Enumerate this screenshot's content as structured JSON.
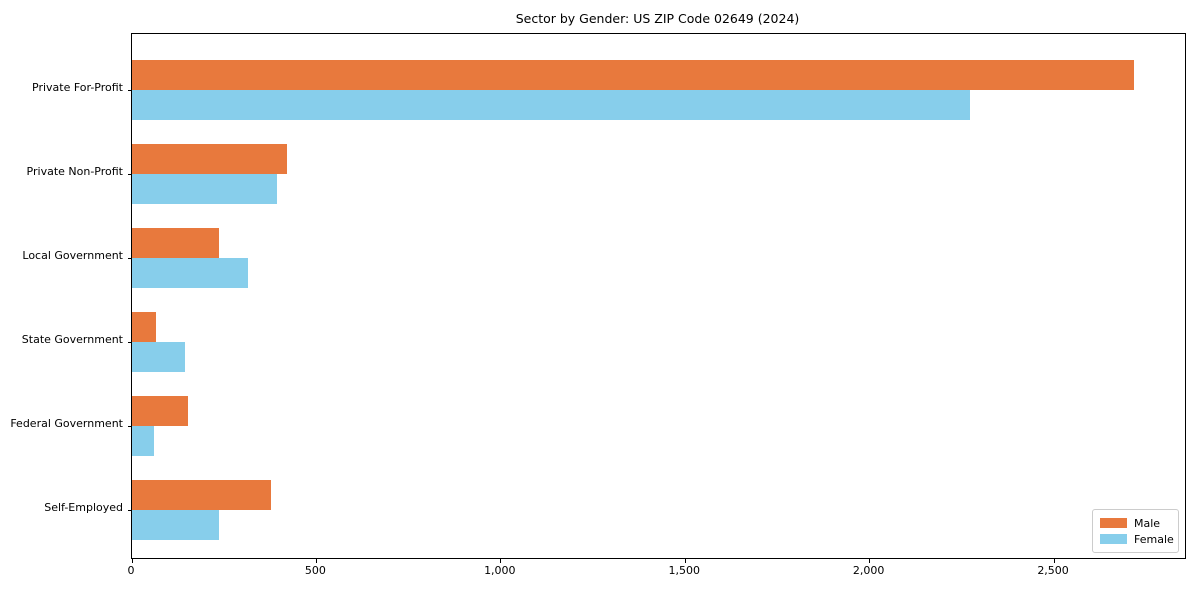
{
  "chart_data": {
    "type": "bar",
    "orientation": "horizontal",
    "title": "Sector by Gender: US ZIP Code 02649 (2024)",
    "categories": [
      "Private For-Profit",
      "Private Non-Profit",
      "Local Government",
      "State Government",
      "Federal Government",
      "Self-Employed"
    ],
    "series": [
      {
        "name": "Male",
        "color": "#E8793D",
        "values": [
          2718,
          420,
          235,
          65,
          153,
          377
        ]
      },
      {
        "name": "Female",
        "color": "#87CEEB",
        "values": [
          2272,
          392,
          315,
          144,
          60,
          237
        ]
      }
    ],
    "xlabel": "",
    "ylabel": "",
    "xlim": [
      0,
      2855
    ],
    "xticks": {
      "values": [
        0,
        500,
        1000,
        1500,
        2000,
        2500
      ],
      "labels": [
        "0",
        "500",
        "1,000",
        "1,500",
        "2,000",
        "2,500"
      ]
    },
    "legend": {
      "position": "lower right",
      "entries": [
        "Male",
        "Female"
      ]
    },
    "grid": false,
    "background_color": "#ffffff",
    "spine_color": "#000000"
  }
}
